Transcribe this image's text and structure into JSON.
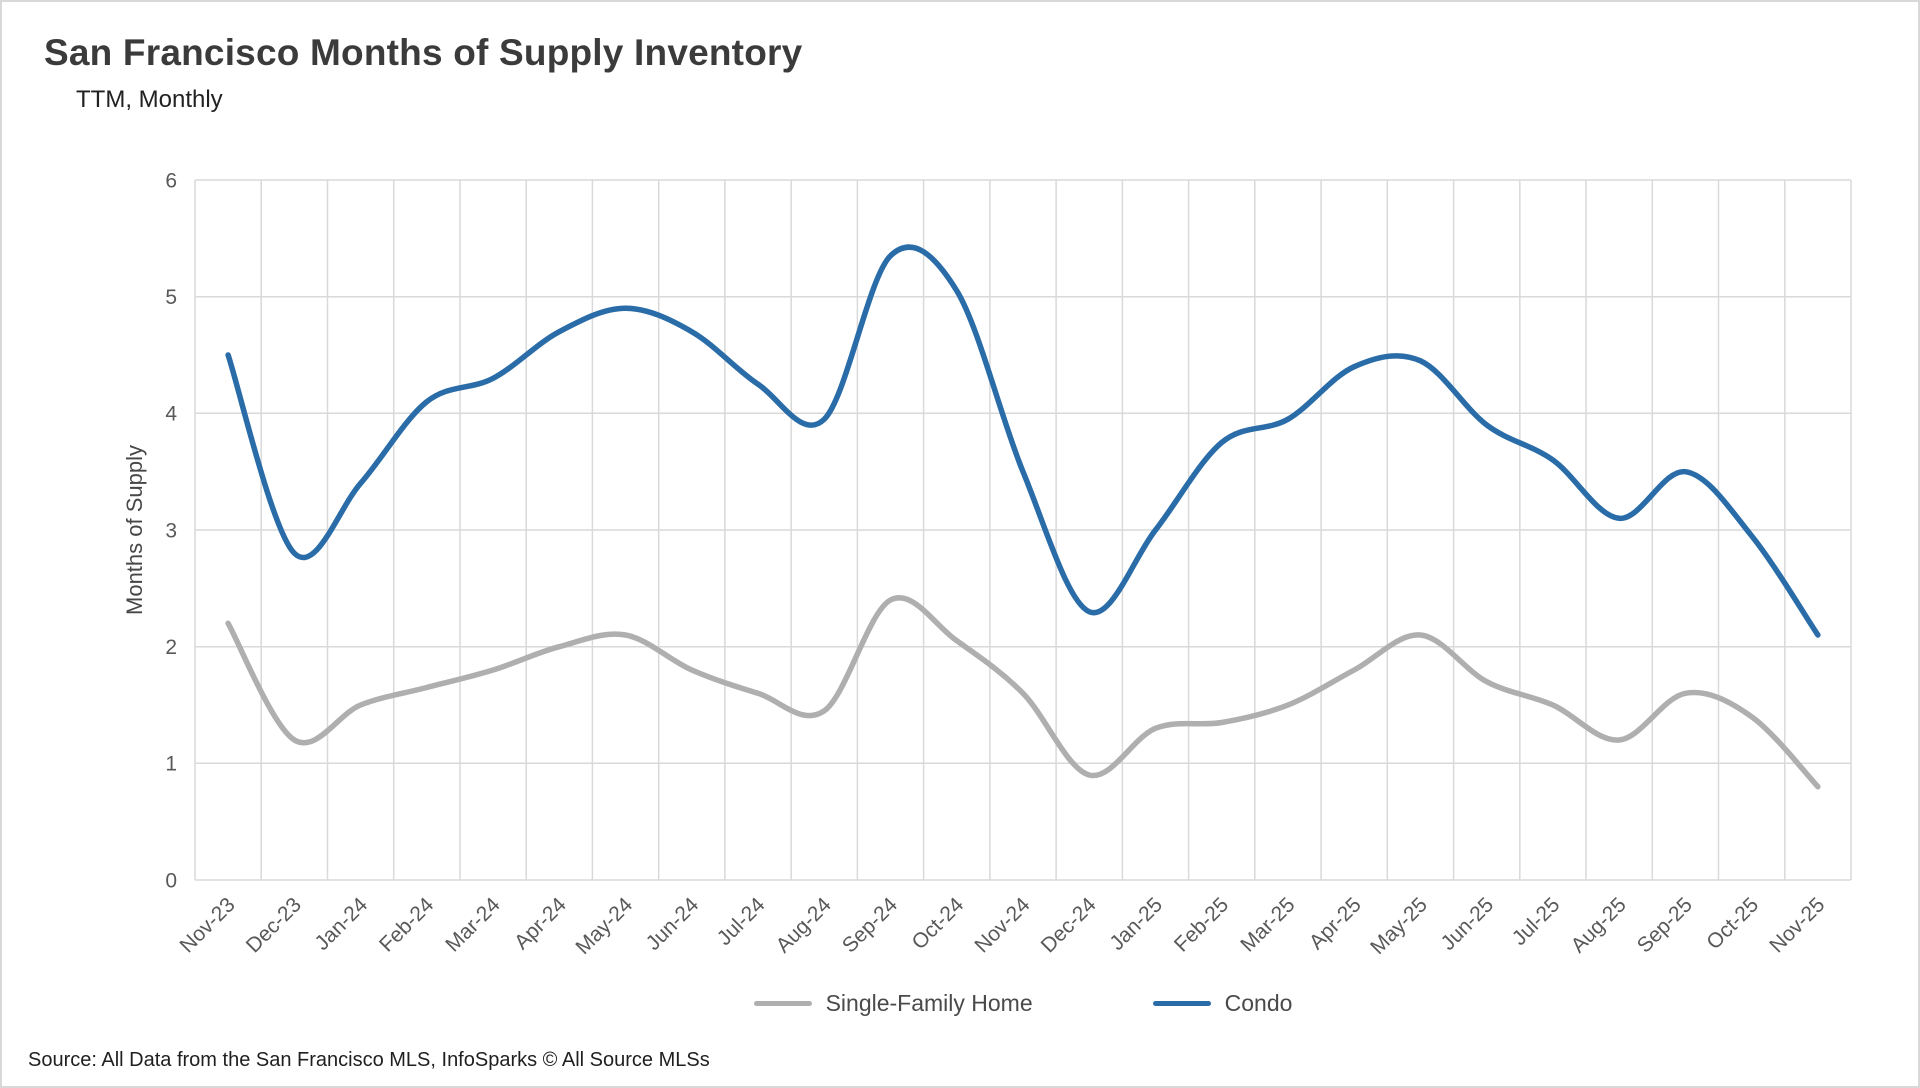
{
  "header": {
    "title": "San Francisco Months of Supply Inventory",
    "subtitle": "TTM, Monthly"
  },
  "footer": {
    "source": "Source: All Data from the San Francisco MLS, InfoSparks © All Source MLSs"
  },
  "chart_data": {
    "type": "line",
    "title": "San Francisco Months of Supply Inventory",
    "subtitle": "TTM, Monthly",
    "xlabel": "",
    "ylabel": "Months of Supply",
    "ylim": [
      0,
      6
    ],
    "ytick_interval": 1,
    "yticks": [
      0,
      1,
      2,
      3,
      4,
      5,
      6
    ],
    "grid": "both",
    "grid_color": "#D9D9D9",
    "axis_text_color": "#595959",
    "smooth_lines": true,
    "legend_position": "bottom",
    "categories": [
      "Nov-23",
      "Dec-23",
      "Jan-24",
      "Feb-24",
      "Mar-24",
      "Apr-24",
      "May-24",
      "Jun-24",
      "Jul-24",
      "Aug-24",
      "Sep-24",
      "Oct-24",
      "Nov-24",
      "Dec-24",
      "Jan-25",
      "Feb-25",
      "Mar-25",
      "Apr-25",
      "May-25",
      "Jun-25",
      "Jul-25",
      "Aug-25",
      "Sep-25",
      "Oct-25",
      "Nov-25"
    ],
    "series": [
      {
        "name": "Single-Family Home",
        "color": "#AFAFAF",
        "values": [
          2.2,
          1.2,
          1.5,
          1.65,
          1.8,
          2.0,
          2.1,
          1.8,
          1.6,
          1.45,
          2.4,
          2.05,
          1.6,
          0.9,
          1.3,
          1.35,
          1.5,
          1.8,
          2.1,
          1.7,
          1.5,
          1.2,
          1.6,
          1.4,
          0.8
        ]
      },
      {
        "name": "Condo",
        "color": "#2A6CA8",
        "values": [
          4.5,
          2.8,
          3.4,
          4.1,
          4.3,
          4.7,
          4.9,
          4.7,
          4.25,
          3.95,
          5.35,
          5.05,
          3.5,
          2.3,
          3.0,
          3.75,
          3.95,
          4.4,
          4.45,
          3.9,
          3.6,
          3.1,
          3.5,
          2.95,
          2.1
        ]
      }
    ]
  }
}
